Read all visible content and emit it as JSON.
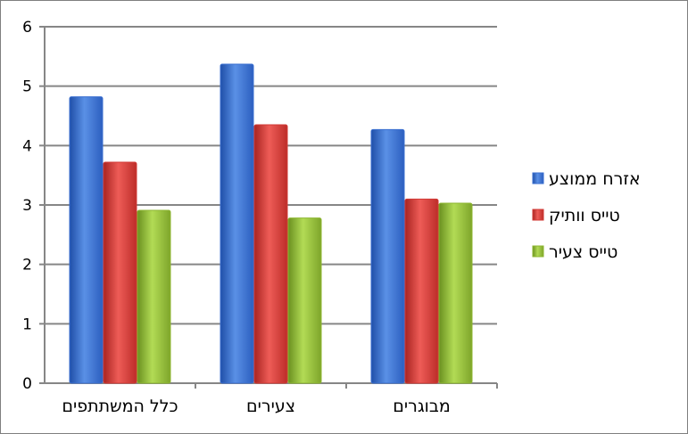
{
  "chart_data": {
    "type": "bar",
    "categories": [
      "כלל המשתתפים",
      "צעירים",
      "מבוגרים"
    ],
    "series": [
      {
        "name": "אזרח ממוצע",
        "values": [
          4.82,
          5.37,
          4.27
        ],
        "color": "#3a6fd0"
      },
      {
        "name": "טייס וותיק",
        "values": [
          3.72,
          4.35,
          3.1
        ],
        "color": "#d23a36"
      },
      {
        "name": "טייס צעיר",
        "values": [
          2.91,
          2.78,
          3.03
        ],
        "color": "#8cb62f"
      }
    ],
    "ylim": [
      0,
      6
    ],
    "yticks": [
      "0",
      "1",
      "2",
      "3",
      "4",
      "5",
      "6"
    ],
    "grid": true,
    "legend_position": "right",
    "title": "",
    "xlabel": "",
    "ylabel": ""
  }
}
